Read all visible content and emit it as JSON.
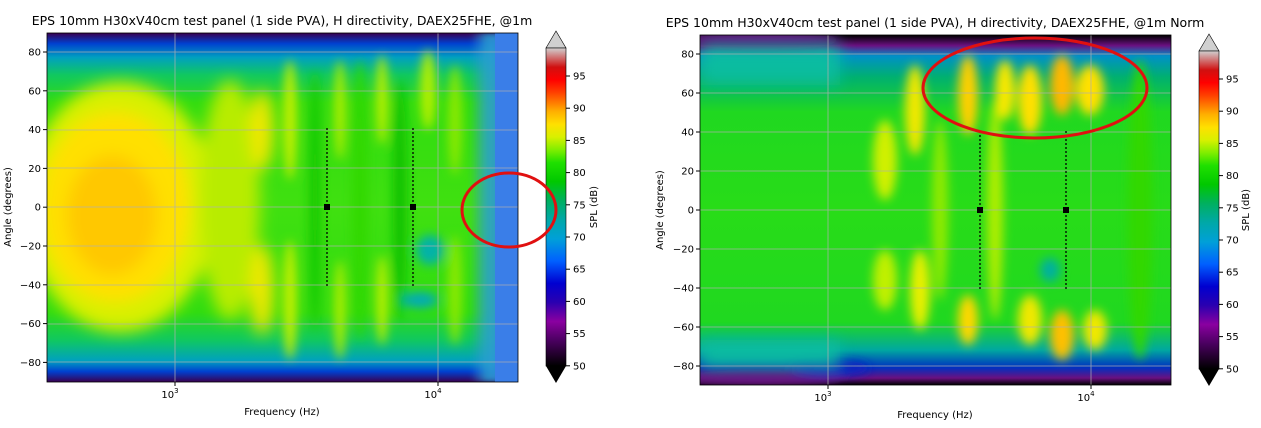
{
  "charts": [
    {
      "title": "EPS 10mm H30xV40cm test panel (1 side PVA), H directivity, DAEX25FHE, @1m",
      "xlabel": "Frequency (Hz)",
      "ylabel": "Angle (degrees)",
      "xticks": [
        "10",
        "10"
      ],
      "xtick_exp": [
        "3",
        "4"
      ],
      "yticks": [
        "80",
        "60",
        "40",
        "20",
        "0",
        "−20",
        "−40",
        "−60",
        "−80"
      ],
      "colorbar_label": "SPL (dB)",
      "colorbar_ticks": [
        "95",
        "90",
        "85",
        "80",
        "75",
        "70",
        "65",
        "60",
        "55",
        "50"
      ]
    },
    {
      "title": "EPS 10mm H30xV40cm test panel (1 side PVA), H directivity, DAEX25FHE, @1m Norm",
      "xlabel": "Frequency (Hz)",
      "ylabel": "Angle (degrees)",
      "xticks": [
        "10",
        "10"
      ],
      "xtick_exp": [
        "3",
        "4"
      ],
      "yticks": [
        "80",
        "60",
        "40",
        "20",
        "0",
        "−20",
        "−40",
        "−60",
        "−80"
      ],
      "colorbar_label": "SPL (dB)",
      "colorbar_ticks": [
        "95",
        "90",
        "85",
        "80",
        "75",
        "70",
        "65",
        "60",
        "55",
        "50"
      ]
    }
  ],
  "chart_data": [
    {
      "type": "heatmap",
      "title": "EPS 10mm H30xV40cm test panel (1 side PVA), H directivity, DAEX25FHE, @1m",
      "xlabel": "Frequency (Hz)",
      "ylabel": "Angle (degrees)",
      "xscale": "log",
      "xlim": [
        300,
        20000
      ],
      "ylim": [
        -90,
        90
      ],
      "colorbar": {
        "label": "SPL (dB)",
        "range": [
          48,
          100
        ]
      },
      "grid": true,
      "markers": [
        {
          "x": 3800,
          "y": 0,
          "vline": [
            -40,
            40
          ]
        },
        {
          "x": 8000,
          "y": 0,
          "vline": [
            -40,
            40
          ]
        }
      ],
      "annotations": [
        {
          "type": "ellipse",
          "color": "#e01010",
          "center": [
            15000,
            -2
          ]
        }
      ],
      "regions": [
        {
          "desc": "broad yellow lobe",
          "x": [
            300,
            1300
          ],
          "y": [
            -45,
            45
          ],
          "value": 87
        },
        {
          "desc": "green body",
          "x": [
            300,
            13000
          ],
          "y": [
            -80,
            80
          ],
          "value": 80
        },
        {
          "desc": "blue roll-off",
          "x": [
            15000,
            20000
          ],
          "y": [
            -90,
            90
          ],
          "value": 68
        }
      ]
    },
    {
      "type": "heatmap",
      "title": "EPS 10mm H30xV40cm test panel (1 side PVA), H directivity, DAEX25FHE, @1m Norm",
      "xlabel": "Frequency (Hz)",
      "ylabel": "Angle (degrees)",
      "xscale": "log",
      "xlim": [
        300,
        20000
      ],
      "ylim": [
        -90,
        90
      ],
      "colorbar": {
        "label": "SPL (dB)",
        "range": [
          48,
          100
        ]
      },
      "grid": true,
      "markers": [
        {
          "x": 3800,
          "y": 0,
          "vline": [
            -40,
            40
          ]
        },
        {
          "x": 8000,
          "y": 0,
          "vline": [
            -40,
            40
          ]
        }
      ],
      "annotations": [
        {
          "type": "ellipse",
          "color": "#e01010",
          "center": [
            6000,
            62
          ]
        }
      ],
      "regions": [
        {
          "desc": "normalized green field",
          "x": [
            300,
            20000
          ],
          "y": [
            -80,
            80
          ],
          "value": 79
        },
        {
          "desc": "yellow-orange lobes",
          "x": [
            2500,
            12000
          ],
          "y": [
            40,
            80
          ],
          "value": 87
        }
      ]
    }
  ]
}
